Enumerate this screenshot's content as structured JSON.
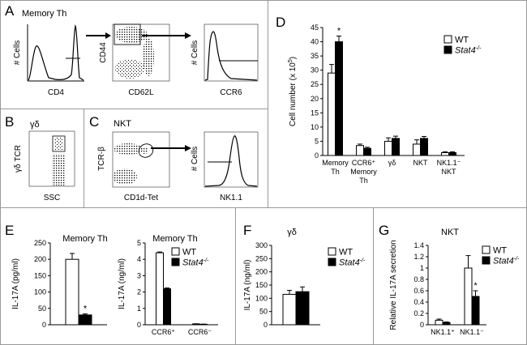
{
  "figure": {
    "panel_labels": [
      "A",
      "B",
      "C",
      "D",
      "E",
      "F",
      "G"
    ],
    "panel_a": {
      "title": "Memory Th",
      "plot1": {
        "xlabel": "CD4",
        "ylabel": "# Cells"
      },
      "plot2": {
        "xlabel": "CD62L",
        "ylabel": "CD44"
      },
      "plot3": {
        "xlabel": "CCR6",
        "ylabel": "# Cells"
      }
    },
    "panel_b": {
      "title": "γδ",
      "xlabel": "SSC",
      "ylabel": "γδ TCR"
    },
    "panel_c": {
      "title": "NKT",
      "plot1": {
        "xlabel": "CD1d-Tet",
        "ylabel": "TCR-β"
      },
      "plot2": {
        "xlabel": "NK1.1",
        "ylabel": "# Cells"
      }
    }
  },
  "legend": {
    "wt": "WT",
    "ko": "Stat4",
    "ko_sup": "-/-"
  },
  "colors": {
    "wt": "#ffffff",
    "ko": "#000000",
    "border": "#000000",
    "frame": "#999999"
  },
  "chart_data": [
    {
      "panel": "D",
      "type": "bar",
      "ylabel": "Cell number (x 10",
      "ylabel_sup": "5",
      "ylabel_end": ")",
      "ylim": [
        0,
        45
      ],
      "ticks": [
        0,
        5,
        10,
        15,
        20,
        25,
        30,
        35,
        40,
        45
      ],
      "categories": [
        {
          "lines": [
            "Memory",
            "Th"
          ]
        },
        {
          "lines": [
            "CCR6⁺",
            "Memory",
            "Th"
          ]
        },
        {
          "lines": [
            "γδ"
          ]
        },
        {
          "lines": [
            "NKT"
          ]
        },
        {
          "lines": [
            "NK1.1⁻",
            "NKT"
          ]
        }
      ],
      "series": [
        {
          "name": "WT",
          "values": [
            29,
            3.5,
            5,
            4,
            1
          ],
          "errors": [
            3,
            0.5,
            1.2,
            1.5,
            0.3
          ]
        },
        {
          "name": "Stat4-/-",
          "values": [
            40,
            2.5,
            6,
            6,
            1
          ],
          "errors": [
            2,
            0.4,
            0.8,
            0.7,
            0.3
          ]
        }
      ],
      "significance": [
        "*",
        "",
        "",
        "",
        ""
      ]
    },
    {
      "panel": "E1",
      "type": "bar",
      "title": "Memory Th",
      "ylabel": "IL-17A (pg/ml)",
      "ylim": [
        0,
        250
      ],
      "ticks": [
        0,
        50,
        100,
        150,
        200,
        250
      ],
      "categories": [
        {
          "lines": [
            ""
          ]
        }
      ],
      "series": [
        {
          "name": "WT",
          "values": [
            200
          ],
          "errors": [
            18
          ]
        },
        {
          "name": "Stat4-/-",
          "values": [
            30
          ],
          "errors": [
            3
          ]
        }
      ],
      "significance": [
        "*"
      ]
    },
    {
      "panel": "E2",
      "type": "bar",
      "title": "Memory Th",
      "ylabel": "IL-17A (ng/ml)",
      "ylim": [
        0,
        5
      ],
      "ticks": [
        0,
        1,
        2,
        3,
        4,
        5
      ],
      "categories": [
        {
          "lines": [
            "CCR6⁺"
          ]
        },
        {
          "lines": [
            "CCR6⁻"
          ]
        }
      ],
      "series": [
        {
          "name": "WT",
          "values": [
            4.4,
            0.05
          ],
          "errors": [
            0.05,
            0.01
          ]
        },
        {
          "name": "Stat4-/-",
          "values": [
            2.2,
            0.03
          ],
          "errors": [
            0.05,
            0.01
          ]
        }
      ],
      "significance": [
        "",
        ""
      ]
    },
    {
      "panel": "F",
      "type": "bar",
      "title": "γδ",
      "ylabel": "IL-17A (ng/ml)",
      "ylim": [
        0,
        300
      ],
      "ticks": [
        0,
        50,
        100,
        150,
        200,
        250,
        300
      ],
      "categories": [
        {
          "lines": [
            ""
          ]
        }
      ],
      "series": [
        {
          "name": "WT",
          "values": [
            115
          ],
          "errors": [
            15
          ]
        },
        {
          "name": "Stat4-/-",
          "values": [
            125
          ],
          "errors": [
            18
          ]
        }
      ],
      "significance": [
        ""
      ]
    },
    {
      "panel": "G",
      "type": "bar",
      "title": "NKT",
      "ylabel": "Relative IL-17A secretion",
      "ylim": [
        0,
        1.4
      ],
      "ticks": [
        0,
        0.2,
        0.4,
        0.6,
        0.8,
        1,
        1.2,
        1.4
      ],
      "tick_labels": [
        "0",
        "0.2",
        "0.4",
        "0.6",
        "0.8",
        "1",
        "1.2",
        "1.4"
      ],
      "categories": [
        {
          "lines": [
            "NK1.1⁺"
          ]
        },
        {
          "lines": [
            "NK1.1⁻"
          ]
        }
      ],
      "series": [
        {
          "name": "WT",
          "values": [
            0.08,
            1.0
          ],
          "errors": [
            0.02,
            0.22
          ]
        },
        {
          "name": "Stat4-/-",
          "values": [
            0.04,
            0.5
          ],
          "errors": [
            0.01,
            0.1
          ]
        }
      ],
      "significance": [
        "",
        "*"
      ]
    }
  ]
}
